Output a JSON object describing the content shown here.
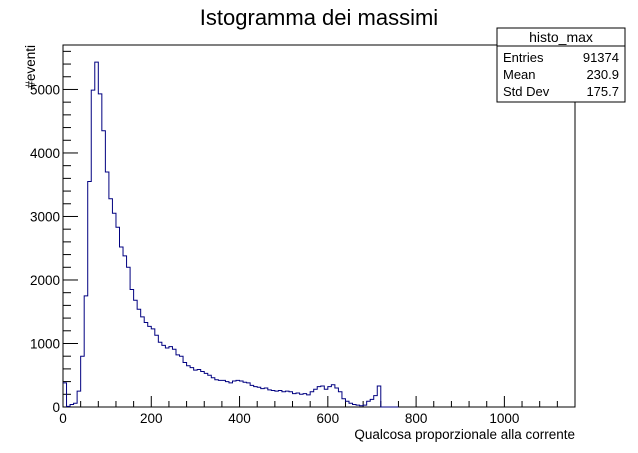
{
  "chart_data": {
    "type": "histogram",
    "title": "Istogramma dei massimi",
    "xlabel": "Qualcosa proporzionale alla corrente",
    "ylabel": "#eventi",
    "xlim": [
      0,
      1160
    ],
    "ylim": [
      0,
      5700
    ],
    "x_ticks": [
      0,
      200,
      400,
      600,
      800,
      1000
    ],
    "y_ticks": [
      0,
      1000,
      2000,
      3000,
      4000,
      5000
    ],
    "grid": false,
    "line_color": "#000080",
    "bin_width": 8,
    "bins_start": 0,
    "values": [
      380,
      10,
      40,
      60,
      250,
      800,
      1750,
      3550,
      4990,
      5430,
      4930,
      4350,
      3700,
      3280,
      3050,
      2830,
      2520,
      2380,
      2200,
      1850,
      1680,
      1540,
      1420,
      1330,
      1270,
      1230,
      1130,
      1020,
      970,
      930,
      950,
      910,
      820,
      800,
      700,
      650,
      620,
      580,
      590,
      560,
      530,
      500,
      460,
      430,
      420,
      420,
      400,
      380,
      410,
      420,
      410,
      390,
      380,
      340,
      320,
      310,
      290,
      300,
      270,
      260,
      250,
      260,
      240,
      250,
      240,
      210,
      220,
      200,
      210,
      190,
      240,
      280,
      320,
      330,
      280,
      320,
      350,
      300,
      240,
      130,
      90,
      60,
      40,
      30,
      20,
      30,
      90,
      120,
      180,
      330,
      0,
      0,
      0,
      0,
      0
    ],
    "stats": {
      "name": "histo_max",
      "entries_label": "Entries",
      "entries_value": "91374",
      "mean_label": "Mean",
      "mean_value": "230.9",
      "stddev_label": "Std Dev",
      "stddev_value": "175.7"
    }
  }
}
